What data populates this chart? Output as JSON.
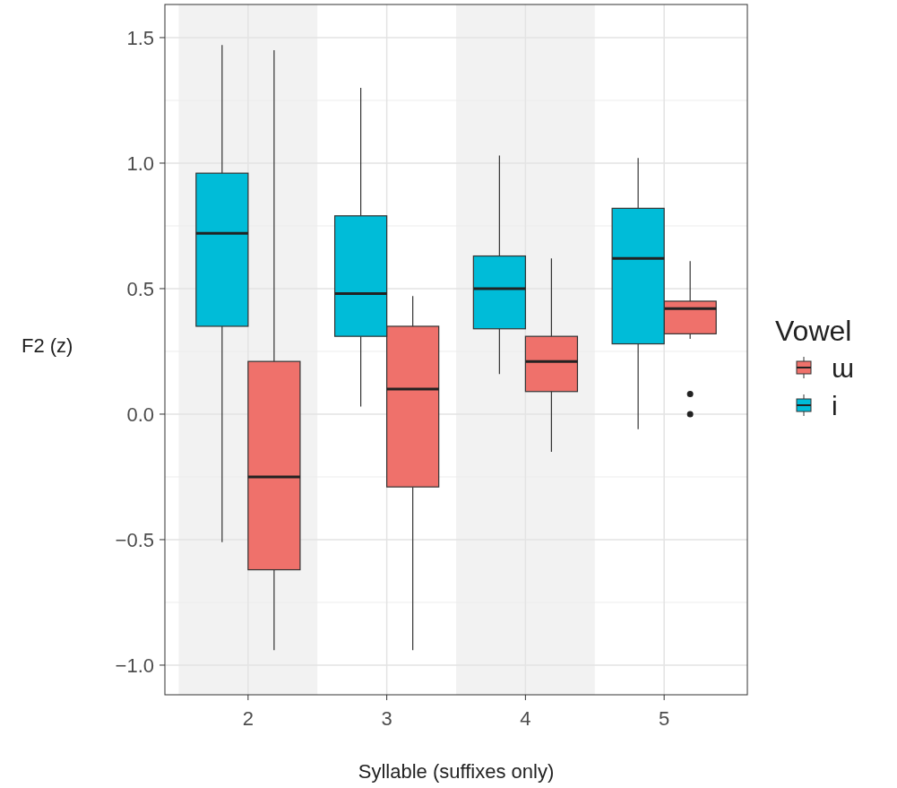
{
  "chart_data": {
    "type": "box",
    "xlabel": "Syllable (suffixes only)",
    "ylabel": "F2 (z)",
    "legend_title": "Vowel",
    "categories": [
      "2",
      "3",
      "4",
      "5"
    ],
    "ylim": [
      -1.118,
      1.632
    ],
    "yticks": [
      {
        "value": -1,
        "label": "−1.0"
      },
      {
        "value": -0.5,
        "label": "−0.5"
      },
      {
        "value": 0,
        "label": "0.0"
      },
      {
        "value": 0.5,
        "label": "0.5"
      },
      {
        "value": 1,
        "label": "1.0"
      },
      {
        "value": 1.5,
        "label": "1.5"
      }
    ],
    "grid": true,
    "legend": "right",
    "bands": [
      {
        "axis": "x",
        "from": "2",
        "to": "2",
        "color": "#f2f2f2"
      },
      {
        "axis": "x",
        "from": "4",
        "to": "4",
        "color": "#f2f2f2"
      }
    ],
    "series": [
      {
        "name": "ɯ",
        "color": "#ef716b",
        "boxes": [
          {
            "low": -0.94,
            "q1": -0.62,
            "median": -0.25,
            "q3": 0.21,
            "high": 1.45
          },
          {
            "low": -0.94,
            "q1": -0.29,
            "median": 0.1,
            "q3": 0.35,
            "high": 0.47
          },
          {
            "low": -0.15,
            "q1": 0.09,
            "median": 0.21,
            "q3": 0.31,
            "high": 0.62
          },
          {
            "low": 0.3,
            "q1": 0.32,
            "median": 0.42,
            "q3": 0.45,
            "high": 0.61,
            "outliers": [
              0.08,
              0.0
            ]
          }
        ]
      },
      {
        "name": "i",
        "color": "#00bcd8",
        "boxes": [
          {
            "low": -0.51,
            "q1": 0.35,
            "median": 0.72,
            "q3": 0.96,
            "high": 1.47
          },
          {
            "low": 0.03,
            "q1": 0.31,
            "median": 0.48,
            "q3": 0.79,
            "high": 1.3
          },
          {
            "low": 0.16,
            "q1": 0.34,
            "median": 0.5,
            "q3": 0.63,
            "high": 1.03
          },
          {
            "low": -0.06,
            "q1": 0.28,
            "median": 0.62,
            "q3": 0.82,
            "high": 1.02
          }
        ]
      }
    ]
  }
}
